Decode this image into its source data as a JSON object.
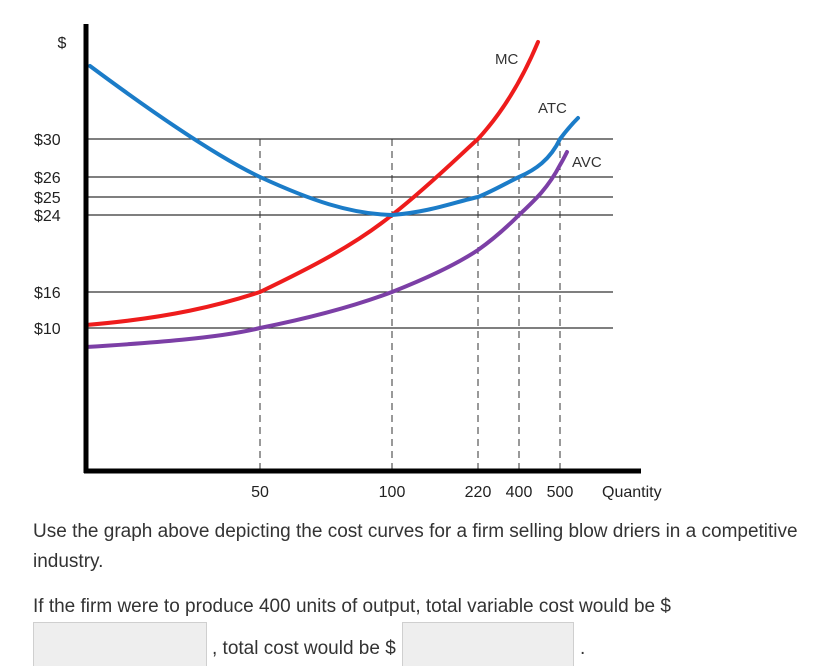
{
  "chart_data": {
    "type": "line",
    "ylabel": "$",
    "xlabel": "Quantity",
    "y_ticks": [
      {
        "value": 30,
        "label": "$30"
      },
      {
        "value": 26,
        "label": "$26"
      },
      {
        "value": 25,
        "label": "$25"
      },
      {
        "value": 24,
        "label": "$24"
      },
      {
        "value": 16,
        "label": "$16"
      },
      {
        "value": 10,
        "label": "$10"
      }
    ],
    "x_ticks": [
      {
        "value": 50,
        "label": "50"
      },
      {
        "value": 100,
        "label": "100"
      },
      {
        "value": 220,
        "label": "220"
      },
      {
        "value": 400,
        "label": "400"
      },
      {
        "value": 500,
        "label": "500"
      }
    ],
    "series": [
      {
        "name": "MC",
        "color": "#ee1c1c",
        "points": [
          [
            0,
            10.3
          ],
          [
            50,
            16
          ],
          [
            100,
            24
          ],
          [
            220,
            30
          ],
          [
            500,
            39
          ]
        ]
      },
      {
        "name": "ATC",
        "color": "#1b7cc8",
        "points": [
          [
            0,
            44
          ],
          [
            50,
            26
          ],
          [
            100,
            24
          ],
          [
            220,
            25
          ],
          [
            400,
            26
          ],
          [
            500,
            30
          ]
        ]
      },
      {
        "name": "AVC",
        "color": "#7c3fa6",
        "points": [
          [
            0,
            8.5
          ],
          [
            50,
            10
          ],
          [
            100,
            16
          ],
          [
            220,
            22.5
          ],
          [
            400,
            25.5
          ],
          [
            500,
            28.2
          ]
        ]
      }
    ],
    "grid": "horizontal lines at each labeled price; dashed vertical lines at each labeled quantity"
  },
  "question": {
    "intro": "Use the graph above depicting the cost curves for a firm selling blow driers in a competitive industry.",
    "prompt": "If the firm were to produce 400 units of output, total variable cost would be $",
    "total_cost_text": ", total cost would be $",
    "end_text": "."
  },
  "inputs": {
    "total_variable_cost": {
      "value": ""
    },
    "total_cost": {
      "value": ""
    }
  }
}
